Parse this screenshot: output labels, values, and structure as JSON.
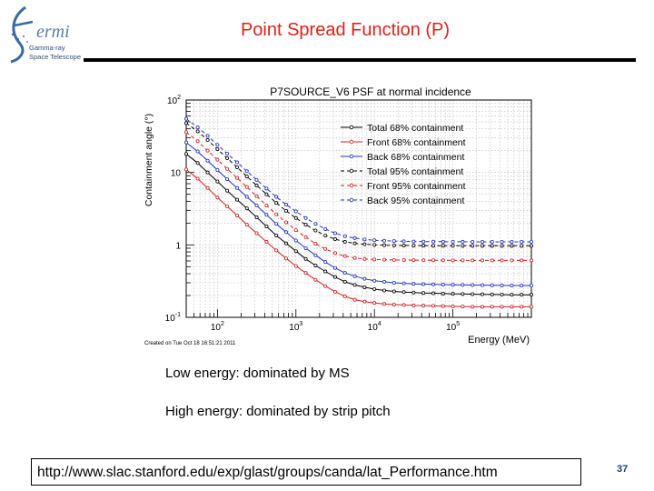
{
  "logo": {
    "word": "ermi",
    "line1": "Gamma-ray",
    "line2": "Space Telescope"
  },
  "slide": {
    "title": "Point Spread Function (P)",
    "bullet1": "Low energy: dominated by MS",
    "bullet2": "High energy: dominated by strip pitch",
    "url": "http://www.slac.stanford.edu/exp/glast/groups/canda/lat_Performance.htm",
    "page": "37"
  },
  "colors": {
    "title": "#e0201a",
    "total": "#000000",
    "front": "#d02020",
    "back": "#2030c0"
  },
  "chart_data": {
    "type": "line",
    "title": "P7SOURCE_V6 PSF at normal incidence",
    "xlabel": "Energy (MeV)",
    "ylabel": "Containment angle (°)",
    "xscale": "log",
    "yscale": "log",
    "xlim": [
      40,
      1000000
    ],
    "ylim": [
      0.1,
      100
    ],
    "xticks": [
      {
        "value": 100,
        "base": "10",
        "exp": "2"
      },
      {
        "value": 1000,
        "base": "10",
        "exp": "3"
      },
      {
        "value": 10000,
        "base": "10",
        "exp": "4"
      },
      {
        "value": 100000,
        "base": "10",
        "exp": "5"
      }
    ],
    "yticks": [
      {
        "value": 0.1,
        "base": "10",
        "exp": "-1"
      },
      {
        "value": 1,
        "base": "1",
        "exp": ""
      },
      {
        "value": 10,
        "base": "10",
        "exp": ""
      },
      {
        "value": 100,
        "base": "10",
        "exp": "2"
      }
    ],
    "footnote": "Created on Tue Oct 18 16:51:21 2011",
    "x": [
      40,
      56,
      75,
      100,
      133,
      178,
      237,
      316,
      422,
      562,
      750,
      1000,
      1334,
      1778,
      2371,
      3162,
      4217,
      5623,
      7499,
      10000,
      13335,
      17783,
      23714,
      31623,
      42170,
      56234,
      74989,
      100000,
      133352,
      177828,
      237137,
      316228,
      421697,
      562341,
      749894,
      1000000
    ],
    "series": [
      {
        "name": "Total 68% containment",
        "color": "#000000",
        "dash": "solid",
        "marker": "circle",
        "values": [
          18,
          13.5,
          10,
          7.5,
          5.6,
          4.2,
          3.2,
          2.4,
          1.8,
          1.35,
          1.05,
          0.82,
          0.64,
          0.52,
          0.43,
          0.36,
          0.31,
          0.28,
          0.26,
          0.245,
          0.235,
          0.228,
          0.223,
          0.22,
          0.217,
          0.215,
          0.213,
          0.211,
          0.21,
          0.209,
          0.208,
          0.207,
          0.206,
          0.205,
          0.205,
          0.205
        ]
      },
      {
        "name": "Front 68% containment",
        "color": "#d02020",
        "dash": "solid",
        "marker": "circle",
        "values": [
          11,
          8.2,
          6.1,
          4.5,
          3.4,
          2.55,
          1.9,
          1.45,
          1.1,
          0.84,
          0.65,
          0.51,
          0.41,
          0.33,
          0.27,
          0.225,
          0.195,
          0.175,
          0.165,
          0.158,
          0.153,
          0.15,
          0.148,
          0.146,
          0.145,
          0.144,
          0.143,
          0.142,
          0.141,
          0.14,
          0.14,
          0.14,
          0.14,
          0.14,
          0.14,
          0.14
        ]
      },
      {
        "name": "Back 68% containment",
        "color": "#2030c0",
        "dash": "solid",
        "marker": "circle",
        "values": [
          26,
          19.5,
          14.5,
          10.8,
          8.1,
          6.1,
          4.6,
          3.5,
          2.6,
          1.95,
          1.5,
          1.15,
          0.9,
          0.72,
          0.58,
          0.48,
          0.41,
          0.37,
          0.34,
          0.32,
          0.31,
          0.3,
          0.295,
          0.29,
          0.287,
          0.285,
          0.283,
          0.281,
          0.28,
          0.279,
          0.278,
          0.277,
          0.276,
          0.275,
          0.275,
          0.275
        ]
      },
      {
        "name": "Total 95% containment",
        "color": "#000000",
        "dash": "dash",
        "marker": "circle",
        "values": [
          48,
          37,
          28,
          21,
          15.7,
          11.8,
          8.8,
          6.6,
          5,
          3.8,
          2.95,
          2.35,
          1.9,
          1.58,
          1.35,
          1.2,
          1.1,
          1.05,
          1.02,
          1,
          0.99,
          0.985,
          0.98,
          0.978,
          0.976,
          0.975,
          0.974,
          0.973,
          0.972,
          0.972,
          0.972,
          0.972,
          0.972,
          0.972,
          0.972,
          0.972
        ]
      },
      {
        "name": "Front 95% containment",
        "color": "#d02020",
        "dash": "dash",
        "marker": "circle",
        "values": [
          36,
          27,
          20,
          15,
          11.2,
          8.4,
          6.3,
          4.7,
          3.5,
          2.65,
          2.05,
          1.6,
          1.28,
          1.04,
          0.88,
          0.77,
          0.7,
          0.66,
          0.64,
          0.63,
          0.625,
          0.62,
          0.618,
          0.616,
          0.615,
          0.614,
          0.613,
          0.612,
          0.611,
          0.61,
          0.61,
          0.61,
          0.61,
          0.61,
          0.61,
          0.61
        ]
      },
      {
        "name": "Back 95% containment",
        "color": "#2030c0",
        "dash": "dash",
        "marker": "circle",
        "values": [
          55,
          42,
          32,
          24,
          18.2,
          13.8,
          10.4,
          7.9,
          6,
          4.6,
          3.6,
          2.9,
          2.35,
          1.95,
          1.65,
          1.45,
          1.32,
          1.24,
          1.19,
          1.16,
          1.14,
          1.13,
          1.12,
          1.115,
          1.11,
          1.108,
          1.106,
          1.105,
          1.104,
          1.103,
          1.102,
          1.102,
          1.102,
          1.102,
          1.102,
          1.102
        ]
      }
    ],
    "grid": true,
    "legend": "top-right"
  }
}
